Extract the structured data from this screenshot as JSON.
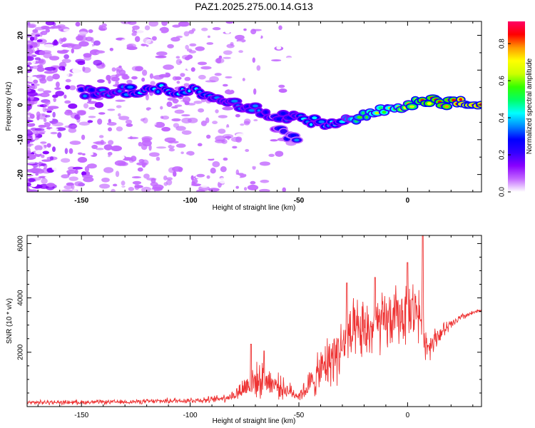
{
  "title": "PAZ1.2025.275.00.14.G13",
  "chart_data": [
    {
      "type": "heatmap",
      "xlabel": "Height of straight line (km)",
      "ylabel": "Frequency (Hz)",
      "xlim": [
        -175,
        34
      ],
      "ylim": [
        -25,
        24
      ],
      "x_ticks": [
        "-150",
        "-100",
        "-50",
        "0"
      ],
      "x_tick_values": [
        -150,
        -100,
        -50,
        0
      ],
      "y_ticks": [
        "-20",
        "-10",
        "0",
        "10",
        "20"
      ],
      "y_tick_values": [
        -20,
        -10,
        0,
        10,
        20
      ],
      "colorbar": {
        "label": "Normalized spectral amplitude",
        "range": [
          0,
          0.92
        ],
        "ticks": [
          "0.0",
          "0.2",
          "0.4",
          "0.6",
          "0.8"
        ],
        "tick_values": [
          0,
          0.2,
          0.4,
          0.6,
          0.8
        ],
        "colors": [
          "#ffffff",
          "#c266ff",
          "#8800ff",
          "#3300ff",
          "#0000ff",
          "#0088ff",
          "#00ffff",
          "#00ff66",
          "#33ff00",
          "#ccff00",
          "#ffff00",
          "#ff9900",
          "#ff0000",
          "#ff0066"
        ]
      },
      "ridge": [
        {
          "x": -150,
          "y": 3.5,
          "a": 0.3
        },
        {
          "x": -140,
          "y": 3.8,
          "a": 0.35
        },
        {
          "x": -130,
          "y": 4.0,
          "a": 0.35
        },
        {
          "x": -120,
          "y": 4.2,
          "a": 0.4
        },
        {
          "x": -110,
          "y": 4.5,
          "a": 0.4
        },
        {
          "x": -100,
          "y": 4.0,
          "a": 0.4
        },
        {
          "x": -90,
          "y": 3.0,
          "a": 0.35
        },
        {
          "x": -80,
          "y": 1.0,
          "a": 0.35
        },
        {
          "x": -70,
          "y": -1.5,
          "a": 0.35
        },
        {
          "x": -60,
          "y": -3.0,
          "a": 0.3
        },
        {
          "x": -50,
          "y": -3.5,
          "a": 0.35
        },
        {
          "x": -40,
          "y": -5.5,
          "a": 0.4
        },
        {
          "x": -35,
          "y": -6.0,
          "a": 0.4
        },
        {
          "x": -30,
          "y": -5.0,
          "a": 0.45
        },
        {
          "x": -20,
          "y": -3.5,
          "a": 0.55
        },
        {
          "x": -10,
          "y": -1.5,
          "a": 0.6
        },
        {
          "x": 0,
          "y": 0.5,
          "a": 0.7
        },
        {
          "x": 10,
          "y": 1.0,
          "a": 0.8
        },
        {
          "x": 20,
          "y": 0.5,
          "a": 0.85
        },
        {
          "x": 34,
          "y": 0.2,
          "a": 0.9
        }
      ],
      "branch": [
        {
          "x": -60,
          "y": -6.0,
          "a": 0.25
        },
        {
          "x": -55,
          "y": -9.0,
          "a": 0.28
        },
        {
          "x": -50,
          "y": -11.0,
          "a": 0.3
        }
      ]
    },
    {
      "type": "line",
      "xlabel": "Height of straight line (km)",
      "ylabel": "SNR (10 * v/v)",
      "xlim": [
        -175,
        34
      ],
      "ylim": [
        0,
        6300
      ],
      "x_ticks": [
        "-150",
        "-100",
        "-50",
        "0"
      ],
      "x_tick_values": [
        -150,
        -100,
        -50,
        0
      ],
      "y_ticks": [
        "2000",
        "4000",
        "6000"
      ],
      "y_tick_values": [
        2000,
        4000,
        6000
      ],
      "color": "#ee3333",
      "envelope": [
        {
          "x": -175,
          "base": 150,
          "amp": 100
        },
        {
          "x": -130,
          "base": 170,
          "amp": 100
        },
        {
          "x": -90,
          "base": 250,
          "amp": 150
        },
        {
          "x": -80,
          "base": 400,
          "amp": 250
        },
        {
          "x": -72,
          "base": 900,
          "amp": 800
        },
        {
          "x": -65,
          "base": 1000,
          "amp": 700
        },
        {
          "x": -58,
          "base": 700,
          "amp": 500
        },
        {
          "x": -50,
          "base": 400,
          "amp": 250
        },
        {
          "x": -45,
          "base": 800,
          "amp": 700
        },
        {
          "x": -35,
          "base": 1800,
          "amp": 1300
        },
        {
          "x": -25,
          "base": 2600,
          "amp": 1500
        },
        {
          "x": -15,
          "base": 2900,
          "amp": 1400
        },
        {
          "x": -5,
          "base": 3300,
          "amp": 1400
        },
        {
          "x": 5,
          "base": 3600,
          "amp": 1400
        },
        {
          "x": 9,
          "base": 2200,
          "amp": 700
        },
        {
          "x": 15,
          "base": 2700,
          "amp": 400
        },
        {
          "x": 25,
          "base": 3300,
          "amp": 150
        },
        {
          "x": 34,
          "base": 3550,
          "amp": 80
        }
      ],
      "peaks": [
        {
          "x": -72,
          "y": 2300
        },
        {
          "x": -66,
          "y": 2050
        },
        {
          "x": -28,
          "y": 4550
        },
        {
          "x": -15,
          "y": 4750
        },
        {
          "x": 0,
          "y": 5300
        },
        {
          "x": 7,
          "y": 6300
        }
      ]
    }
  ]
}
